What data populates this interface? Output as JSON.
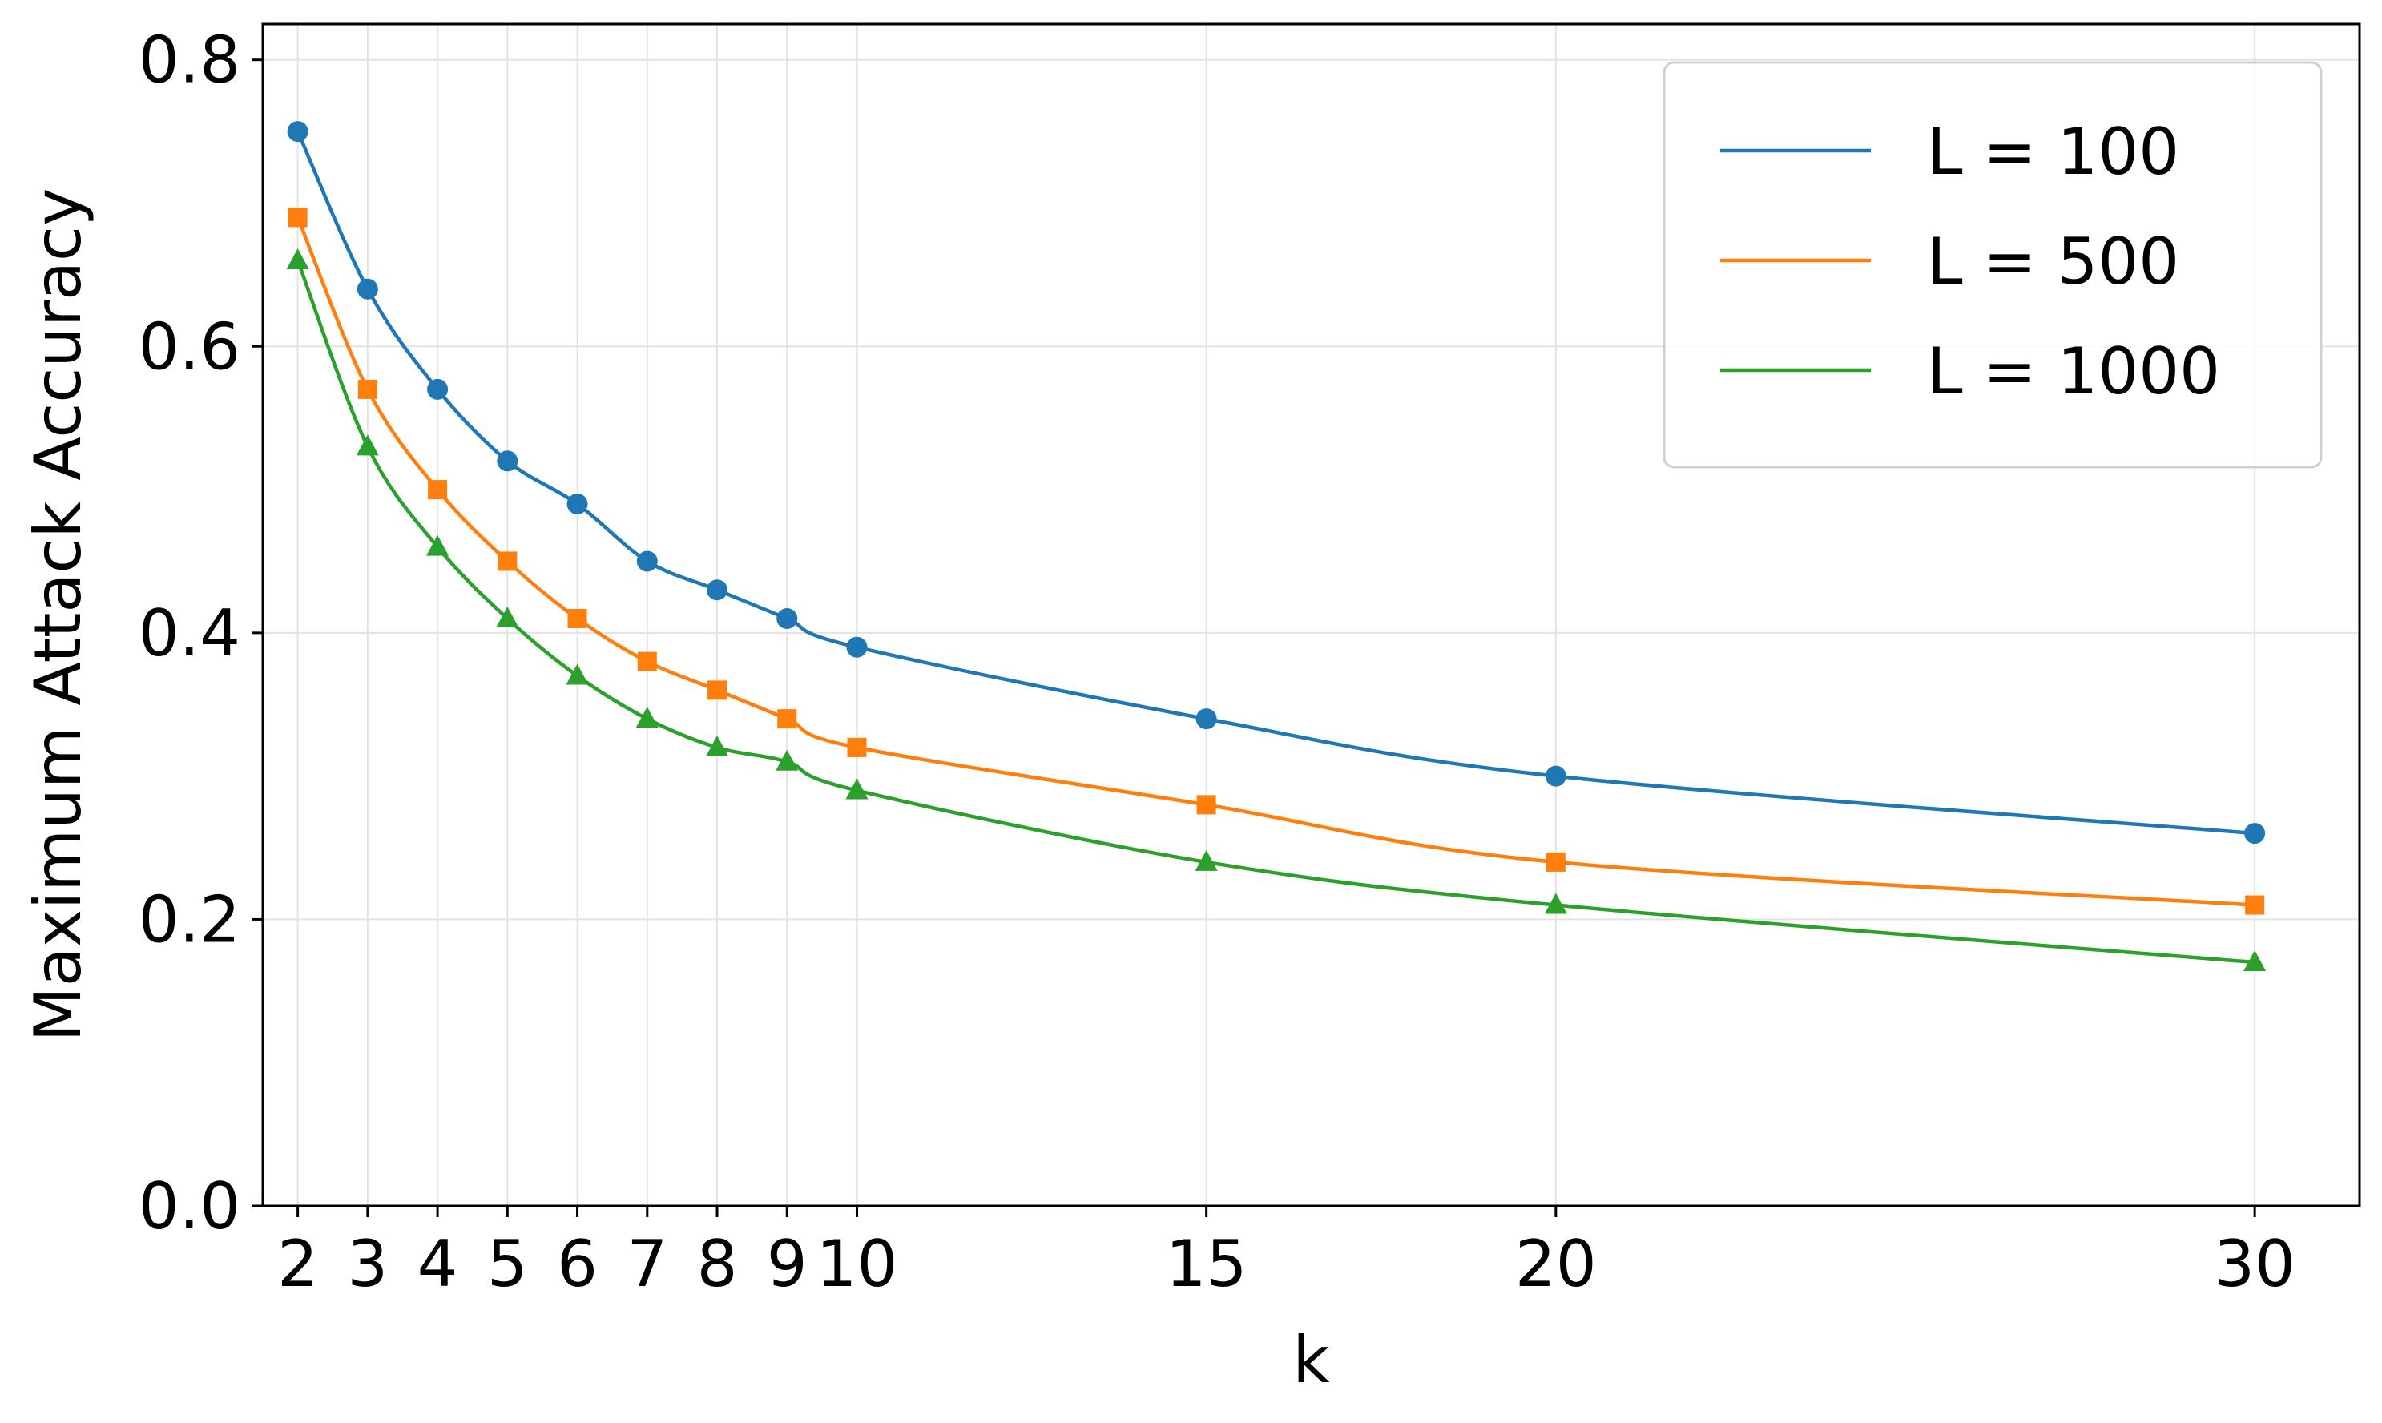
{
  "chart_data": {
    "type": "line",
    "title": "",
    "xlabel": "k",
    "ylabel": "Maximum Attack Accuracy",
    "x": [
      2,
      3,
      4,
      5,
      6,
      7,
      8,
      9,
      10,
      15,
      20,
      30
    ],
    "x_tick_labels": [
      "2",
      "3",
      "4",
      "5",
      "6",
      "7",
      "8",
      "9",
      "10",
      "15",
      "20",
      "30"
    ],
    "y_tick_labels": [
      "0.0",
      "0.2",
      "0.4",
      "0.6",
      "0.8"
    ],
    "y_ticks": [
      0.0,
      0.2,
      0.4,
      0.6,
      0.8
    ],
    "xlim": [
      1.5,
      31.5
    ],
    "ylim": [
      0.0,
      0.825
    ],
    "grid": true,
    "legend_position": "top-right",
    "series": [
      {
        "name": "L = 100",
        "color": "#1f77b4",
        "marker": "circle",
        "values": [
          0.75,
          0.64,
          0.57,
          0.52,
          0.49,
          0.45,
          0.43,
          0.41,
          0.39,
          0.34,
          0.3,
          0.26
        ]
      },
      {
        "name": "L = 500",
        "color": "#ff7f0e",
        "marker": "square",
        "values": [
          0.69,
          0.57,
          0.5,
          0.45,
          0.41,
          0.38,
          0.36,
          0.34,
          0.32,
          0.28,
          0.24,
          0.21
        ]
      },
      {
        "name": "L = 1000",
        "color": "#2ca02c",
        "marker": "triangle",
        "values": [
          0.66,
          0.53,
          0.46,
          0.41,
          0.37,
          0.34,
          0.32,
          0.31,
          0.29,
          0.24,
          0.21,
          0.17
        ]
      }
    ]
  }
}
